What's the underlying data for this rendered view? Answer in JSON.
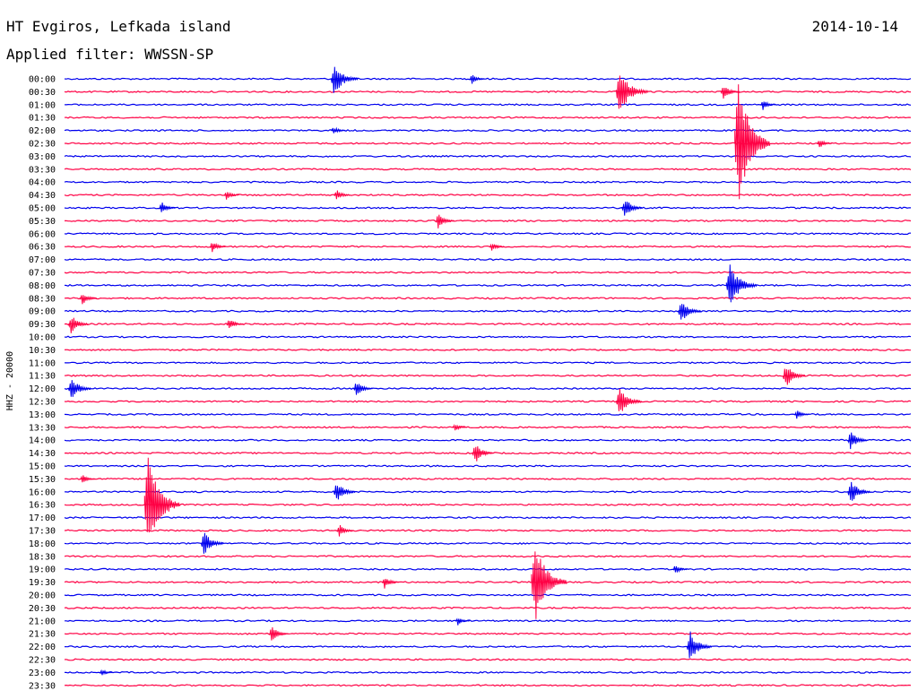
{
  "header": {
    "station": "HT Evgiros, Lefkada island",
    "filter": "Applied filter: WWSSN-SP",
    "date": "2014-10-14"
  },
  "chart_data": {
    "type": "line",
    "title": "HT Evgiros, Lefkada island",
    "subtitle": "Applied filter: WWSSN-SP",
    "ylabel": "HHZ - 20000",
    "grid": false,
    "colors": [
      "#0000ee",
      "#ff0044"
    ],
    "rows": [
      "00:00",
      "00:30",
      "01:00",
      "01:30",
      "02:00",
      "02:30",
      "03:00",
      "03:30",
      "04:00",
      "04:30",
      "05:00",
      "05:30",
      "06:00",
      "06:30",
      "07:00",
      "07:30",
      "08:00",
      "08:30",
      "09:00",
      "09:30",
      "10:00",
      "10:30",
      "11:00",
      "11:30",
      "12:00",
      "12:30",
      "13:00",
      "13:30",
      "14:00",
      "14:30",
      "15:00",
      "15:30",
      "16:00",
      "16:30",
      "17:00",
      "17:30",
      "18:00",
      "18:30",
      "19:00",
      "19:30",
      "20:00",
      "20:30",
      "21:00",
      "21:30",
      "22:00",
      "22:30",
      "23:00",
      "23:30"
    ],
    "minutes_per_row": 30,
    "events": [
      {
        "row": 0,
        "minute": 9.5,
        "amplitude": 2.0
      },
      {
        "row": 0,
        "minute": 14.4,
        "amplitude": 0.6
      },
      {
        "row": 1,
        "minute": 19.6,
        "amplitude": 2.6
      },
      {
        "row": 1,
        "minute": 23.3,
        "amplitude": 1.0
      },
      {
        "row": 2,
        "minute": 24.7,
        "amplitude": 0.6
      },
      {
        "row": 4,
        "minute": 9.5,
        "amplitude": 0.5
      },
      {
        "row": 5,
        "minute": 26.7,
        "amplitude": 0.6
      },
      {
        "row": 5,
        "minute": 23.8,
        "amplitude": 8.0
      },
      {
        "row": 9,
        "minute": 5.7,
        "amplitude": 0.6
      },
      {
        "row": 9,
        "minute": 9.6,
        "amplitude": 0.7
      },
      {
        "row": 10,
        "minute": 3.4,
        "amplitude": 0.8
      },
      {
        "row": 10,
        "minute": 19.8,
        "amplitude": 1.3
      },
      {
        "row": 11,
        "minute": 13.2,
        "amplitude": 1.0
      },
      {
        "row": 13,
        "minute": 5.2,
        "amplitude": 0.7
      },
      {
        "row": 13,
        "minute": 15.1,
        "amplitude": 0.6
      },
      {
        "row": 16,
        "minute": 23.5,
        "amplitude": 2.5
      },
      {
        "row": 17,
        "minute": 0.6,
        "amplitude": 0.8
      },
      {
        "row": 18,
        "minute": 21.8,
        "amplitude": 1.5
      },
      {
        "row": 19,
        "minute": 0.2,
        "amplitude": 1.2
      },
      {
        "row": 19,
        "minute": 5.8,
        "amplitude": 0.8
      },
      {
        "row": 23,
        "minute": 25.5,
        "amplitude": 1.5
      },
      {
        "row": 24,
        "minute": 0.2,
        "amplitude": 1.5
      },
      {
        "row": 24,
        "minute": 10.3,
        "amplitude": 1.0
      },
      {
        "row": 25,
        "minute": 19.6,
        "amplitude": 1.8
      },
      {
        "row": 26,
        "minute": 25.9,
        "amplitude": 0.6
      },
      {
        "row": 27,
        "minute": 13.8,
        "amplitude": 0.5
      },
      {
        "row": 28,
        "minute": 27.8,
        "amplitude": 1.2
      },
      {
        "row": 29,
        "minute": 14.5,
        "amplitude": 1.3
      },
      {
        "row": 31,
        "minute": 0.6,
        "amplitude": 0.6
      },
      {
        "row": 32,
        "minute": 9.6,
        "amplitude": 1.4
      },
      {
        "row": 32,
        "minute": 27.8,
        "amplitude": 1.5
      },
      {
        "row": 33,
        "minute": 2.9,
        "amplitude": 6.0
      },
      {
        "row": 35,
        "minute": 9.7,
        "amplitude": 0.8
      },
      {
        "row": 36,
        "minute": 4.9,
        "amplitude": 1.5
      },
      {
        "row": 38,
        "minute": 21.6,
        "amplitude": 0.6
      },
      {
        "row": 39,
        "minute": 16.6,
        "amplitude": 5.0
      },
      {
        "row": 39,
        "minute": 11.3,
        "amplitude": 0.8
      },
      {
        "row": 42,
        "minute": 13.9,
        "amplitude": 0.5
      },
      {
        "row": 43,
        "minute": 7.3,
        "amplitude": 1.0
      },
      {
        "row": 44,
        "minute": 22.1,
        "amplitude": 1.8
      },
      {
        "row": 46,
        "minute": 1.3,
        "amplitude": 0.4
      }
    ]
  }
}
